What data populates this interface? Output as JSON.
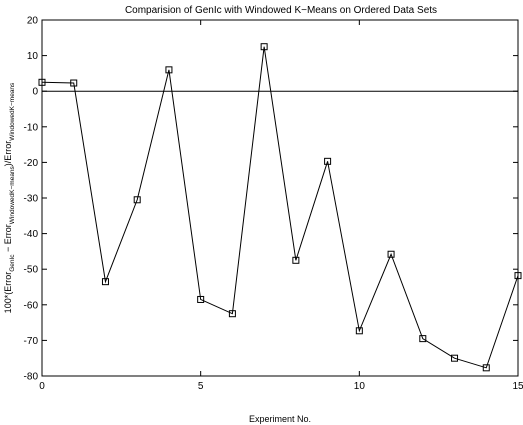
{
  "chart_data": {
    "type": "line",
    "title": "Comparision of GenIc with Windowed K−Means on Ordered Data Sets",
    "xlabel": "Experiment No.",
    "ylabel": {
      "p1": "100*(Error",
      "s1": "GenIc",
      "p2": " − Error",
      "s2": "WindowedK−means",
      "p3": ")/Error",
      "s3": "WindowedK−means"
    },
    "xlim": [
      0,
      15
    ],
    "ylim": [
      -80,
      20
    ],
    "xticks": [
      0,
      5,
      10,
      15
    ],
    "yticks": [
      20,
      10,
      0,
      -10,
      -20,
      -30,
      -40,
      -50,
      -60,
      -70,
      -80
    ],
    "x": [
      0,
      1,
      2,
      3,
      4,
      5,
      6,
      7,
      8,
      9,
      10,
      11,
      12,
      13,
      14,
      15
    ],
    "series": [
      {
        "values": [
          2.5,
          2.3,
          -53.5,
          -30.5,
          6,
          -58.5,
          -62.5,
          12.5,
          -47.5,
          -19.7,
          -67.3,
          -45.8,
          -69.5,
          -75,
          -77.7,
          -51.8
        ]
      }
    ],
    "reference_line": 0,
    "marker": "square",
    "grid": false,
    "colors": {
      "line": "#000000",
      "axes": "#000000"
    }
  }
}
